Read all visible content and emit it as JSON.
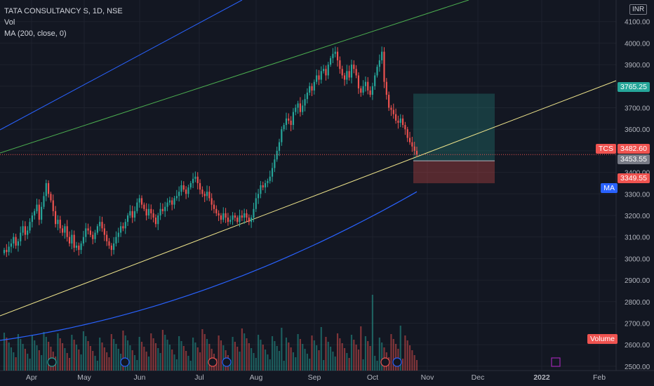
{
  "legend": {
    "symbol": "TATA CONSULTANCY S, 1D, NSE",
    "vol": "Vol",
    "ma": "MA (200, close, 0)"
  },
  "currency": "INR",
  "colors": {
    "background": "#131722",
    "grid": "#1e222d",
    "up": "#26a69a",
    "down": "#ef5350",
    "ma": "#2962ff",
    "channel_upper": "#4caf50",
    "channel_lower": "#f0e68c",
    "blue_line": "#2962ff",
    "target_zone": "#26a69a",
    "stop_zone": "#ef5350"
  },
  "tags": {
    "target": "3765.25",
    "tcs_label": "TCS",
    "tcs_price": "3482.60",
    "entry": "3453.55",
    "stop": "3349.55",
    "ma_label": "MA",
    "volume_label": "Volume"
  },
  "chart_data": {
    "type": "candlestick",
    "title": "TATA CONSULTANCY S, 1D, NSE",
    "ylim": [
      2480,
      4200
    ],
    "y_ticks": [
      "4100.00",
      "4000.00",
      "3900.00",
      "3800.00",
      "3700.00",
      "3600.00",
      "3500.00",
      "3400.00",
      "3300.00",
      "3200.00",
      "3100.00",
      "3000.00",
      "2900.00",
      "2800.00",
      "2700.00",
      "2600.00",
      "2500.00"
    ],
    "x_ticks": [
      "Apr",
      "May",
      "Jun",
      "Jul",
      "Aug",
      "Sep",
      "Oct",
      "Nov",
      "Dec",
      "2022",
      "Feb"
    ],
    "closes": [
      3040,
      3030,
      3055,
      3070,
      3100,
      3060,
      3080,
      3120,
      3150,
      3110,
      3130,
      3170,
      3200,
      3220,
      3250,
      3180,
      3240,
      3290,
      3350,
      3300,
      3270,
      3220,
      3160,
      3180,
      3140,
      3120,
      3150,
      3100,
      3070,
      3110,
      3050,
      3060,
      3040,
      3070,
      3100,
      3140,
      3130,
      3110,
      3090,
      3120,
      3150,
      3170,
      3140,
      3110,
      3080,
      3060,
      3040,
      3070,
      3100,
      3120,
      3150,
      3140,
      3170,
      3200,
      3220,
      3190,
      3220,
      3260,
      3280,
      3250,
      3230,
      3200,
      3230,
      3210,
      3190,
      3160,
      3200,
      3230,
      3220,
      3240,
      3260,
      3270,
      3250,
      3280,
      3290,
      3310,
      3340,
      3320,
      3300,
      3330,
      3350,
      3370,
      3380,
      3350,
      3320,
      3300,
      3290,
      3310,
      3280,
      3250,
      3230,
      3210,
      3200,
      3180,
      3210,
      3190,
      3170,
      3180,
      3200,
      3190,
      3170,
      3200,
      3190,
      3210,
      3190,
      3170,
      3190,
      3230,
      3280,
      3300,
      3340,
      3330,
      3350,
      3360,
      3380,
      3420,
      3460,
      3500,
      3540,
      3600,
      3620,
      3650,
      3640,
      3620,
      3680,
      3700,
      3720,
      3680,
      3710,
      3740,
      3770,
      3800,
      3780,
      3820,
      3850,
      3830,
      3870,
      3880,
      3850,
      3900,
      3930,
      3950,
      3960,
      3920,
      3880,
      3850,
      3830,
      3870,
      3840,
      3900,
      3880,
      3850,
      3790,
      3770,
      3800,
      3820,
      3780,
      3760,
      3800,
      3850,
      3890,
      3920,
      3960,
      3820,
      3760,
      3700,
      3690,
      3670,
      3640,
      3630,
      3650,
      3620,
      3600,
      3560,
      3540,
      3520,
      3500,
      3482.6
    ],
    "ma_series": {
      "name": "MA",
      "start": 2620,
      "end": 3310
    },
    "annotations": {
      "channel_upper": "upward trend line",
      "channel_lower": "upward trend line",
      "long_position": {
        "target": 3765.25,
        "entry": 3453.55,
        "stop": 3349.55
      },
      "last_price": 3482.6
    }
  }
}
